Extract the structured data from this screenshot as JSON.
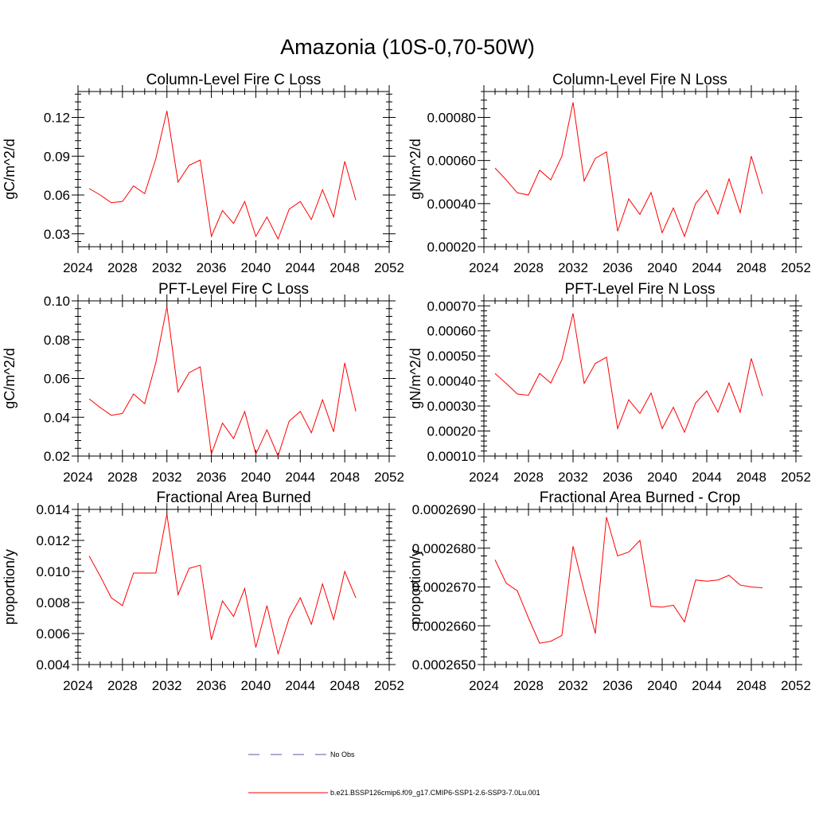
{
  "title": "Amazonia (10S-0,70-50W)",
  "legend": [
    {
      "label": "No Obs",
      "color": "#5a5aa0",
      "dash": true
    },
    {
      "label": "b.e21.BSSP126cmip6.f09_g17.CMIP6-SSP1-2.6-SSP3-7.0Lu.001",
      "color": "#ff0000",
      "dash": false
    }
  ],
  "chart_data": [
    {
      "type": "line",
      "title": "Column-Level Fire C Loss",
      "ylabel": "gC/m^2/d",
      "xlim": [
        2024,
        2052
      ],
      "ylim": [
        0.02,
        0.14
      ],
      "xticks": [
        2024,
        2028,
        2032,
        2036,
        2040,
        2044,
        2048,
        2052
      ],
      "yticks": [
        0.03,
        0.06,
        0.09,
        0.12
      ],
      "ytick_labels": [
        "0.03",
        "0.06",
        "0.09",
        "0.12"
      ],
      "series": [
        {
          "color": "#ff0000",
          "x": [
            2025,
            2026,
            2027,
            2028,
            2029,
            2030,
            2031,
            2032,
            2033,
            2034,
            2035,
            2036,
            2037,
            2038,
            2039,
            2040,
            2041,
            2042,
            2043,
            2044,
            2045,
            2046,
            2047,
            2048,
            2049
          ],
          "y": [
            0.065,
            0.06,
            0.054,
            0.055,
            0.067,
            0.061,
            0.088,
            0.125,
            0.07,
            0.083,
            0.087,
            0.028,
            0.048,
            0.038,
            0.055,
            0.028,
            0.043,
            0.026,
            0.049,
            0.055,
            0.041,
            0.064,
            0.043,
            0.086,
            0.056
          ]
        }
      ]
    },
    {
      "type": "line",
      "title": "Column-Level Fire N Loss",
      "ylabel": "gN/m^2/d",
      "xlim": [
        2024,
        2052
      ],
      "ylim": [
        0.0002,
        0.00092
      ],
      "xticks": [
        2024,
        2028,
        2032,
        2036,
        2040,
        2044,
        2048,
        2052
      ],
      "yticks": [
        0.0002,
        0.0004,
        0.0006,
        0.0008
      ],
      "ytick_labels": [
        "0.00020",
        "0.00040",
        "0.00060",
        "0.00080"
      ],
      "series": [
        {
          "color": "#ff0000",
          "x": [
            2025,
            2026,
            2027,
            2028,
            2029,
            2030,
            2031,
            2032,
            2033,
            2034,
            2035,
            2036,
            2037,
            2038,
            2039,
            2040,
            2041,
            2042,
            2043,
            2044,
            2045,
            2046,
            2047,
            2048,
            2049
          ],
          "y": [
            0.000565,
            0.00051,
            0.00045,
            0.00044,
            0.000555,
            0.00051,
            0.00062,
            0.00087,
            0.000505,
            0.00061,
            0.00064,
            0.000272,
            0.000422,
            0.00035,
            0.000452,
            0.000265,
            0.00038,
            0.000248,
            0.0004,
            0.000462,
            0.000352,
            0.000515,
            0.000358,
            0.00062,
            0.000445
          ]
        }
      ]
    },
    {
      "type": "line",
      "title": "PFT-Level Fire C Loss",
      "ylabel": "gC/m^2/d",
      "xlim": [
        2024,
        2052
      ],
      "ylim": [
        0.02,
        0.1
      ],
      "xticks": [
        2024,
        2028,
        2032,
        2036,
        2040,
        2044,
        2048,
        2052
      ],
      "yticks": [
        0.02,
        0.04,
        0.06,
        0.08,
        0.1
      ],
      "ytick_labels": [
        "0.02",
        "0.04",
        "0.06",
        "0.08",
        "0.10"
      ],
      "series": [
        {
          "color": "#ff0000",
          "x": [
            2025,
            2026,
            2027,
            2028,
            2029,
            2030,
            2031,
            2032,
            2033,
            2034,
            2035,
            2036,
            2037,
            2038,
            2039,
            2040,
            2041,
            2042,
            2043,
            2044,
            2045,
            2046,
            2047,
            2048,
            2049
          ],
          "y": [
            0.0495,
            0.045,
            0.041,
            0.042,
            0.052,
            0.047,
            0.068,
            0.097,
            0.053,
            0.063,
            0.066,
            0.021,
            0.037,
            0.029,
            0.043,
            0.021,
            0.0335,
            0.02,
            0.038,
            0.043,
            0.032,
            0.049,
            0.0325,
            0.068,
            0.043
          ]
        }
      ]
    },
    {
      "type": "line",
      "title": "PFT-Level Fire N Loss",
      "ylabel": "gN/m^2/d",
      "xlim": [
        2024,
        2052
      ],
      "ylim": [
        0.0001,
        0.00072
      ],
      "xticks": [
        2024,
        2028,
        2032,
        2036,
        2040,
        2044,
        2048,
        2052
      ],
      "yticks": [
        0.0001,
        0.0002,
        0.0003,
        0.0004,
        0.0005,
        0.0006,
        0.0007
      ],
      "ytick_labels": [
        "0.00010",
        "0.00020",
        "0.00030",
        "0.00040",
        "0.00050",
        "0.00060",
        "0.00070"
      ],
      "series": [
        {
          "color": "#ff0000",
          "x": [
            2025,
            2026,
            2027,
            2028,
            2029,
            2030,
            2031,
            2032,
            2033,
            2034,
            2035,
            2036,
            2037,
            2038,
            2039,
            2040,
            2041,
            2042,
            2043,
            2044,
            2045,
            2046,
            2047,
            2048,
            2049
          ],
          "y": [
            0.00043,
            0.00039,
            0.000348,
            0.000343,
            0.00043,
            0.000392,
            0.000485,
            0.00067,
            0.00039,
            0.00047,
            0.000495,
            0.00021,
            0.000325,
            0.00027,
            0.000352,
            0.00021,
            0.000295,
            0.000195,
            0.000312,
            0.00036,
            0.000275,
            0.000392,
            0.000275,
            0.00049,
            0.00034
          ]
        }
      ]
    },
    {
      "type": "line",
      "title": "Fractional Area Burned",
      "ylabel": "proportion/y",
      "xlim": [
        2024,
        2052
      ],
      "ylim": [
        0.004,
        0.014
      ],
      "xticks": [
        2024,
        2028,
        2032,
        2036,
        2040,
        2044,
        2048,
        2052
      ],
      "yticks": [
        0.004,
        0.006,
        0.008,
        0.01,
        0.012,
        0.014
      ],
      "ytick_labels": [
        "0.004",
        "0.006",
        "0.008",
        "0.010",
        "0.012",
        "0.014"
      ],
      "series": [
        {
          "color": "#ff0000",
          "x": [
            2025,
            2026,
            2027,
            2028,
            2029,
            2030,
            2031,
            2032,
            2033,
            2034,
            2035,
            2036,
            2037,
            2038,
            2039,
            2040,
            2041,
            2042,
            2043,
            2044,
            2045,
            2046,
            2047,
            2048,
            2049
          ],
          "y": [
            0.011,
            0.0097,
            0.0083,
            0.0078,
            0.0099,
            0.0099,
            0.0099,
            0.0137,
            0.0085,
            0.0102,
            0.0104,
            0.0056,
            0.0081,
            0.0071,
            0.0089,
            0.0051,
            0.0078,
            0.0047,
            0.007,
            0.0083,
            0.0066,
            0.0092,
            0.0069,
            0.01,
            0.0083
          ]
        }
      ]
    },
    {
      "type": "line",
      "title": "Fractional Area Burned - Crop",
      "ylabel": "proportion/y",
      "xlim": [
        2024,
        2052
      ],
      "ylim": [
        0.000265,
        0.000269
      ],
      "xticks": [
        2024,
        2028,
        2032,
        2036,
        2040,
        2044,
        2048,
        2052
      ],
      "yticks": [
        0.000265,
        0.000266,
        0.000267,
        0.000268,
        0.000269
      ],
      "ytick_labels": [
        "0.0002650",
        "0.0002660",
        "0.0002670",
        "0.0002680",
        "0.0002690"
      ],
      "series": [
        {
          "color": "#ff0000",
          "x": [
            2025,
            2026,
            2027,
            2028,
            2029,
            2030,
            2031,
            2032,
            2033,
            2034,
            2035,
            2036,
            2037,
            2038,
            2039,
            2040,
            2041,
            2042,
            2043,
            2044,
            2045,
            2046,
            2047,
            2048,
            2049
          ],
          "y": [
            0.0002677,
            0.0002671,
            0.0002669,
            0.0002662,
            0.00026555,
            0.0002656,
            0.00026575,
            0.00026805,
            0.0002669,
            0.0002658,
            0.0002688,
            0.0002678,
            0.0002679,
            0.0002682,
            0.0002665,
            0.00026648,
            0.00026653,
            0.0002661,
            0.00026718,
            0.00026715,
            0.00026718,
            0.0002673,
            0.00026705,
            0.000267,
            0.00026698
          ]
        }
      ]
    }
  ]
}
